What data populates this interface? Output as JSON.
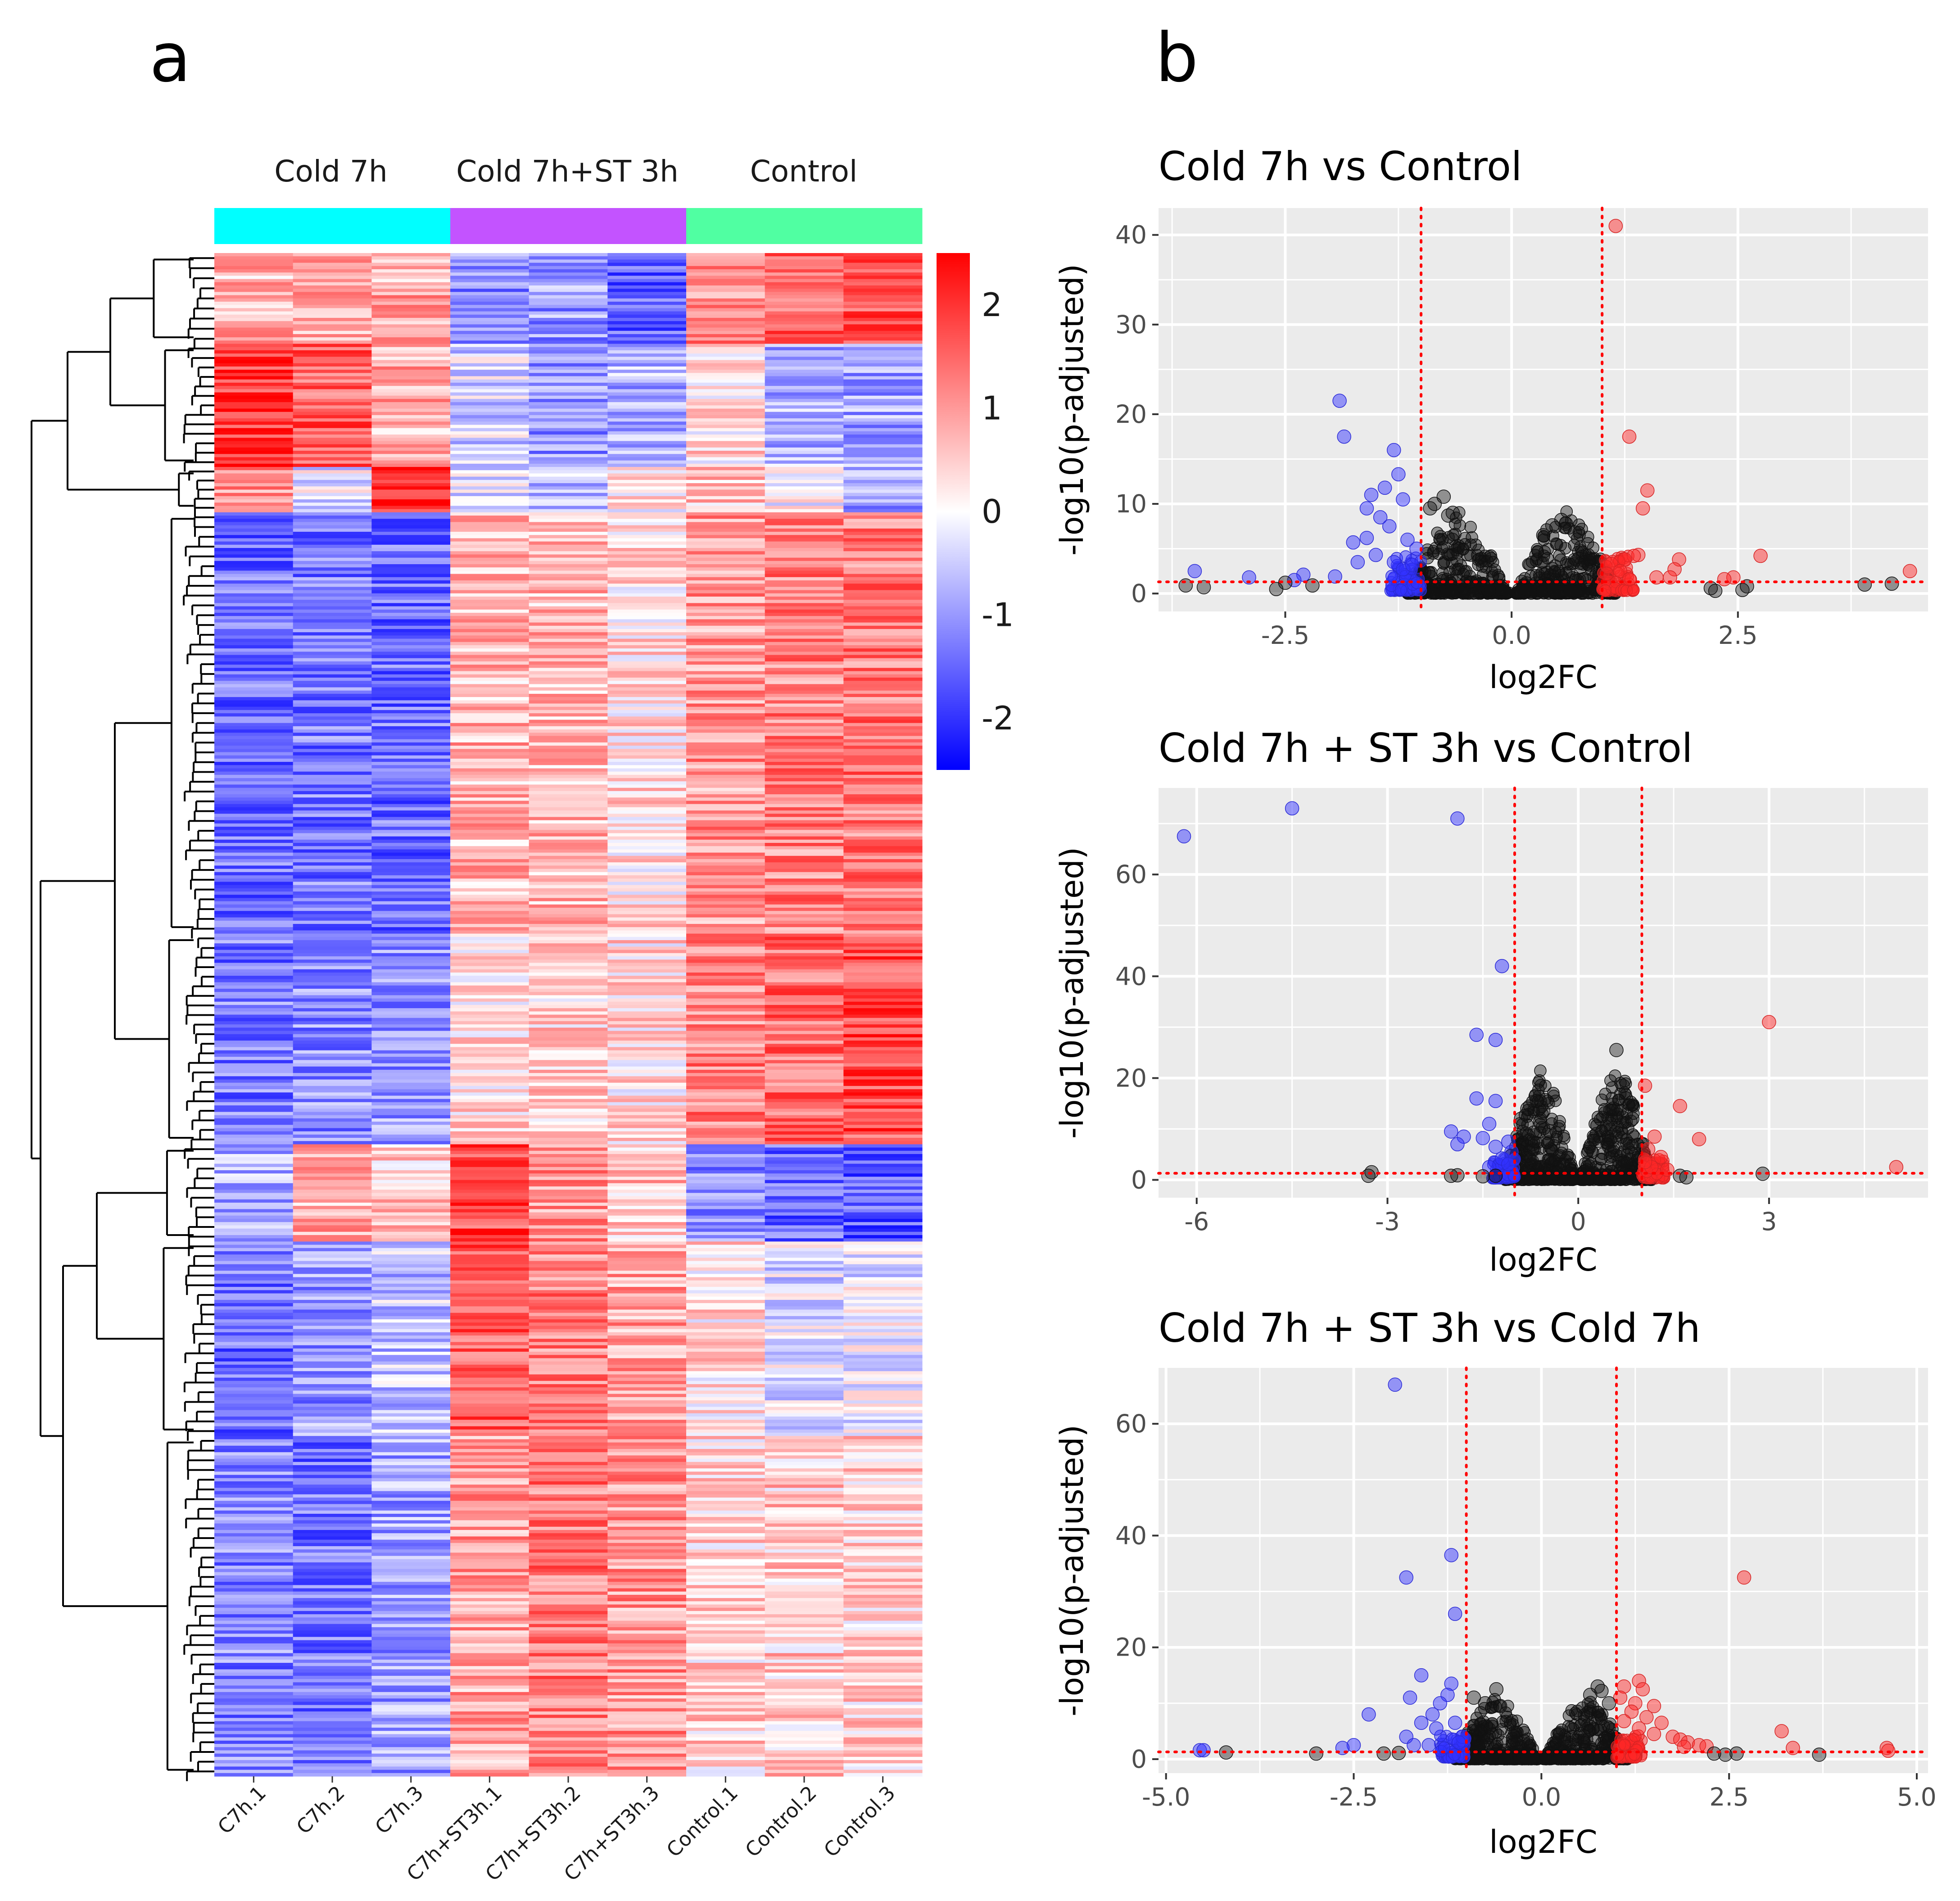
{
  "panels": {
    "a": "a",
    "b": "b"
  },
  "heatmap": {
    "groups": [
      {
        "label": "Cold 7h",
        "color": "#00FFFF"
      },
      {
        "label": "Cold 7h+ST 3h",
        "color": "#C353FF"
      },
      {
        "label": "Control",
        "color": "#50FFA2"
      }
    ],
    "columns": [
      "C7h.1",
      "C7h.2",
      "C7h.3",
      "C7h+ST3h.1",
      "C7h+ST3h.2",
      "C7h+ST3h.3",
      "Control.1",
      "Control.2",
      "Control.3"
    ],
    "colorbar": {
      "min": -2.5,
      "max": 2.5,
      "ticks": [
        2,
        1,
        0,
        -1,
        -2
      ],
      "tick_labels": [
        "2",
        "1",
        "0",
        "-1",
        "-2"
      ],
      "low_color": "#0000FF",
      "mid_color": "#FFFFFF",
      "high_color": "#FF0000"
    }
  },
  "chart_data": [
    {
      "type": "scatter",
      "title": "Cold 7h vs Control",
      "xlabel": "log2FC",
      "ylabel": "-log10(p-adjusted)",
      "xlim": [
        -3.9,
        4.6
      ],
      "ylim": [
        -2,
        43
      ],
      "xticks": [
        -2.5,
        0.0,
        2.5
      ],
      "xtick_labels": [
        "-2.5",
        "0.0",
        "2.5"
      ],
      "yticks": [
        0,
        10,
        20,
        30,
        40
      ],
      "ytick_labels": [
        "0",
        "10",
        "20",
        "30",
        "40"
      ],
      "vlines": [
        -1,
        1
      ],
      "hline": 1.3,
      "points": [
        [
          -1.9,
          21.5,
          "down"
        ],
        [
          -1.85,
          17.5,
          "down"
        ],
        [
          -1.3,
          16,
          "down"
        ],
        [
          -1.25,
          13.3,
          "down"
        ],
        [
          -1.4,
          11.8,
          "down"
        ],
        [
          -1.55,
          11,
          "down"
        ],
        [
          -1.6,
          9.5,
          "down"
        ],
        [
          -1.2,
          10.5,
          "down"
        ],
        [
          -1.45,
          8.5,
          "down"
        ],
        [
          -1.35,
          7.5,
          "down"
        ],
        [
          -1.6,
          6.2,
          "down"
        ],
        [
          -1.75,
          5.7,
          "down"
        ],
        [
          -1.15,
          6,
          "down"
        ],
        [
          -1.05,
          5,
          "down"
        ],
        [
          -1.5,
          4.3,
          "down"
        ],
        [
          -1.3,
          3.5,
          "down"
        ],
        [
          -1.2,
          2.7,
          "down"
        ],
        [
          -1.1,
          3.2,
          "down"
        ],
        [
          -1.7,
          3.5,
          "down"
        ],
        [
          -3.5,
          2.5,
          "down"
        ],
        [
          -2.9,
          1.8,
          "down"
        ],
        [
          -2.3,
          2.1,
          "down"
        ],
        [
          -2.4,
          1.5,
          "down"
        ],
        [
          -1.95,
          1.9,
          "down"
        ],
        [
          1.15,
          41,
          "up"
        ],
        [
          1.3,
          17.5,
          "up"
        ],
        [
          1.5,
          11.5,
          "up"
        ],
        [
          1.45,
          9.5,
          "up"
        ],
        [
          1.4,
          4.3,
          "up"
        ],
        [
          1.35,
          4.2,
          "up"
        ],
        [
          1.25,
          3.8,
          "up"
        ],
        [
          1.1,
          3.3,
          "up"
        ],
        [
          1.2,
          2.5,
          "up"
        ],
        [
          1.05,
          2.2,
          "up"
        ],
        [
          1.85,
          3.8,
          "up"
        ],
        [
          1.8,
          2.7,
          "up"
        ],
        [
          1.75,
          1.8,
          "up"
        ],
        [
          2.75,
          4.2,
          "up"
        ],
        [
          2.45,
          1.8,
          "up"
        ],
        [
          2.35,
          1.6,
          "up"
        ],
        [
          4.4,
          2.5,
          "up"
        ],
        [
          1.6,
          1.8,
          "up"
        ],
        [
          1.3,
          1.6,
          "up"
        ],
        [
          -0.75,
          10.8,
          "ns"
        ],
        [
          -0.85,
          10,
          "ns"
        ],
        [
          -0.9,
          9.5,
          "ns"
        ],
        [
          -0.65,
          9,
          "ns"
        ],
        [
          -0.7,
          8.7,
          "ns"
        ],
        [
          0.55,
          8.2,
          "ns"
        ],
        [
          0.6,
          7.8,
          "ns"
        ],
        [
          0.45,
          7.6,
          "ns"
        ],
        [
          0.7,
          6.8,
          "ns"
        ],
        [
          0.35,
          6.5,
          "ns"
        ],
        [
          -3.6,
          0.9,
          "ns"
        ],
        [
          -3.4,
          0.7,
          "ns"
        ],
        [
          -2.6,
          0.5,
          "ns"
        ],
        [
          -2.5,
          1.2,
          "ns"
        ],
        [
          -2.2,
          0.9,
          "ns"
        ],
        [
          3.9,
          1.0,
          "ns"
        ],
        [
          4.2,
          1.1,
          "ns"
        ],
        [
          2.55,
          0.4,
          "ns"
        ],
        [
          2.2,
          0.6,
          "ns"
        ],
        [
          2.6,
          0.8,
          "ns"
        ],
        [
          2.25,
          0.3,
          "ns"
        ]
      ]
    },
    {
      "type": "scatter",
      "title": "Cold 7h + ST 3h vs Control",
      "xlabel": "log2FC",
      "ylabel": "-log10(p-adjusted)",
      "xlim": [
        -6.6,
        5.5
      ],
      "ylim": [
        -3.5,
        77
      ],
      "xticks": [
        -6,
        -3,
        0,
        3
      ],
      "xtick_labels": [
        "-6",
        "-3",
        "0",
        "3"
      ],
      "yticks": [
        0,
        20,
        40,
        60
      ],
      "ytick_labels": [
        "0",
        "20",
        "40",
        "60"
      ],
      "vlines": [
        -1,
        1
      ],
      "hline": 1.3,
      "points": [
        [
          -6.2,
          67.5,
          "down"
        ],
        [
          -4.5,
          73,
          "down"
        ],
        [
          -1.9,
          71,
          "down"
        ],
        [
          -1.2,
          42,
          "down"
        ],
        [
          -1.6,
          28.5,
          "down"
        ],
        [
          -1.3,
          27.5,
          "down"
        ],
        [
          -1.6,
          16,
          "down"
        ],
        [
          -1.3,
          15.5,
          "down"
        ],
        [
          -1.4,
          11,
          "down"
        ],
        [
          -2.0,
          9.5,
          "down"
        ],
        [
          -1.8,
          8.5,
          "down"
        ],
        [
          -1.9,
          7,
          "down"
        ],
        [
          -1.5,
          8.2,
          "down"
        ],
        [
          -1.1,
          7.5,
          "down"
        ],
        [
          -1.3,
          6.5,
          "down"
        ],
        [
          -1.05,
          5.5,
          "down"
        ],
        [
          -1.2,
          4.2,
          "down"
        ],
        [
          -1.1,
          3.1,
          "down"
        ],
        [
          -1.4,
          2.5,
          "down"
        ],
        [
          1.05,
          18.5,
          "up"
        ],
        [
          1.6,
          14.5,
          "up"
        ],
        [
          1.9,
          8,
          "up"
        ],
        [
          1.2,
          8.5,
          "up"
        ],
        [
          1.1,
          6,
          "up"
        ],
        [
          1.3,
          4.5,
          "up"
        ],
        [
          1.15,
          2.5,
          "up"
        ],
        [
          3.0,
          31,
          "up"
        ],
        [
          5.0,
          2.5,
          "up"
        ],
        [
          1.4,
          2,
          "up"
        ],
        [
          1.05,
          3.5,
          "up"
        ],
        [
          0.6,
          25.5,
          "ns"
        ],
        [
          0.7,
          18.5,
          "ns"
        ],
        [
          0.75,
          16,
          "ns"
        ],
        [
          0.55,
          14,
          "ns"
        ],
        [
          0.85,
          12,
          "ns"
        ],
        [
          0.5,
          11,
          "ns"
        ],
        [
          -0.65,
          15.5,
          "ns"
        ],
        [
          -0.8,
          14,
          "ns"
        ],
        [
          -0.55,
          13.5,
          "ns"
        ],
        [
          -0.9,
          12,
          "ns"
        ],
        [
          -0.6,
          11.5,
          "ns"
        ],
        [
          -0.45,
          9.5,
          "ns"
        ],
        [
          -3.3,
          0.8,
          "ns"
        ],
        [
          -3.25,
          1.5,
          "ns"
        ],
        [
          -2.0,
          0.8,
          "ns"
        ],
        [
          -1.9,
          0.9,
          "ns"
        ],
        [
          -1.5,
          0.7,
          "ns"
        ],
        [
          -1.3,
          0.8,
          "ns"
        ],
        [
          1.6,
          0.8,
          "ns"
        ],
        [
          1.7,
          0.5,
          "ns"
        ],
        [
          2.9,
          1.2,
          "ns"
        ]
      ]
    },
    {
      "type": "scatter",
      "title": "Cold 7h + ST 3h vs Cold 7h",
      "xlabel": "log2FC",
      "ylabel": "-log10(p-adjusted)",
      "xlim": [
        -5.1,
        5.15
      ],
      "ylim": [
        -2.5,
        70
      ],
      "xticks": [
        -5.0,
        -2.5,
        0.0,
        2.5,
        5.0
      ],
      "xtick_labels": [
        "-5.0",
        "-2.5",
        "0.0",
        "2.5",
        "5.0"
      ],
      "yticks": [
        0,
        20,
        40,
        60
      ],
      "ytick_labels": [
        "0",
        "20",
        "40",
        "60"
      ],
      "vlines": [
        -1,
        1
      ],
      "hline": 1.3,
      "points": [
        [
          -1.95,
          67,
          "down"
        ],
        [
          -1.8,
          32.5,
          "down"
        ],
        [
          -1.2,
          36.5,
          "down"
        ],
        [
          -1.15,
          26,
          "down"
        ],
        [
          -1.6,
          15,
          "down"
        ],
        [
          -1.2,
          13.5,
          "down"
        ],
        [
          -1.75,
          11,
          "down"
        ],
        [
          -1.25,
          11.5,
          "down"
        ],
        [
          -1.35,
          10,
          "down"
        ],
        [
          -1.45,
          8,
          "down"
        ],
        [
          -2.3,
          8,
          "down"
        ],
        [
          -1.6,
          6.5,
          "down"
        ],
        [
          -1.15,
          6.5,
          "down"
        ],
        [
          -1.4,
          5.5,
          "down"
        ],
        [
          -1.8,
          4,
          "down"
        ],
        [
          -2.5,
          2.5,
          "down"
        ],
        [
          -2.65,
          2,
          "down"
        ],
        [
          -1.05,
          4,
          "down"
        ],
        [
          -1.1,
          3,
          "down"
        ],
        [
          -1.7,
          2.5,
          "down"
        ],
        [
          -4.55,
          1.6,
          "down"
        ],
        [
          -4.5,
          1.6,
          "down"
        ],
        [
          -1.5,
          2.5,
          "down"
        ],
        [
          2.7,
          32.5,
          "up"
        ],
        [
          1.3,
          14,
          "up"
        ],
        [
          1.35,
          12.5,
          "up"
        ],
        [
          1.1,
          13,
          "up"
        ],
        [
          1.05,
          11,
          "up"
        ],
        [
          1.25,
          10,
          "up"
        ],
        [
          1.5,
          9.5,
          "up"
        ],
        [
          1.2,
          8.5,
          "up"
        ],
        [
          1.4,
          7.5,
          "up"
        ],
        [
          1.6,
          6.5,
          "up"
        ],
        [
          1.1,
          6.8,
          "up"
        ],
        [
          1.3,
          5.5,
          "up"
        ],
        [
          1.5,
          4.5,
          "up"
        ],
        [
          1.75,
          4,
          "up"
        ],
        [
          1.85,
          3.5,
          "up"
        ],
        [
          1.95,
          3,
          "up"
        ],
        [
          2.1,
          2.5,
          "up"
        ],
        [
          2.2,
          2.3,
          "up"
        ],
        [
          3.2,
          5,
          "up"
        ],
        [
          3.35,
          2,
          "up"
        ],
        [
          4.6,
          2,
          "up"
        ],
        [
          4.62,
          1.5,
          "up"
        ],
        [
          1.9,
          2.2,
          "up"
        ],
        [
          0.75,
          13,
          "ns"
        ],
        [
          0.8,
          12.2,
          "ns"
        ],
        [
          0.65,
          11.5,
          "ns"
        ],
        [
          -0.6,
          12.5,
          "ns"
        ],
        [
          -0.9,
          11,
          "ns"
        ],
        [
          -0.75,
          10,
          "ns"
        ],
        [
          -0.55,
          9.5,
          "ns"
        ],
        [
          0.9,
          10,
          "ns"
        ],
        [
          -4.2,
          1.2,
          "ns"
        ],
        [
          -3.0,
          1.0,
          "ns"
        ],
        [
          -2.1,
          1.0,
          "ns"
        ],
        [
          2.3,
          1.0,
          "ns"
        ],
        [
          2.45,
          0.8,
          "ns"
        ],
        [
          2.6,
          1.0,
          "ns"
        ],
        [
          3.7,
          0.8,
          "ns"
        ],
        [
          -1.9,
          1.1,
          "ns"
        ]
      ]
    }
  ]
}
